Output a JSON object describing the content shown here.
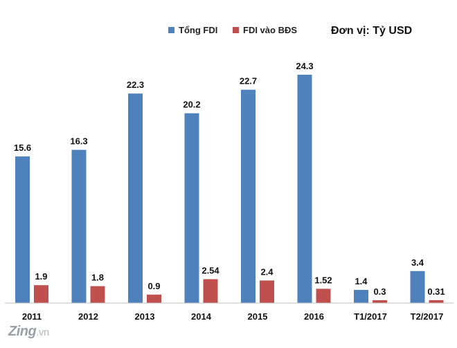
{
  "chart_data": {
    "type": "bar",
    "categories": [
      "2011",
      "2012",
      "2013",
      "2014",
      "2015",
      "2016",
      "T1/2017",
      "T2/2017"
    ],
    "series": [
      {
        "name": "Tổng FDI",
        "color": "#4f81bd",
        "values": [
          15.6,
          16.3,
          22.3,
          20.2,
          22.7,
          24.3,
          1.4,
          3.4
        ],
        "labels": [
          "15.6",
          "16.3",
          "22.3",
          "20.2",
          "22.7",
          "24.3",
          "1.4",
          "3.4"
        ]
      },
      {
        "name": "FDI vào BĐS",
        "color": "#c0504d",
        "values": [
          1.9,
          1.8,
          0.9,
          2.54,
          2.4,
          1.52,
          0.3,
          0.31
        ],
        "labels": [
          "1.9",
          "1.8",
          "0.9",
          "2.54",
          "2.4",
          "1.52",
          "0.3",
          "0.31"
        ]
      }
    ],
    "unit_label": "Đơn vị: Tỷ USD",
    "ylim": [
      0,
      24.3
    ],
    "legend_position": "top",
    "grid": false
  },
  "watermark": {
    "main": "Zing",
    "ext": ".vn"
  }
}
